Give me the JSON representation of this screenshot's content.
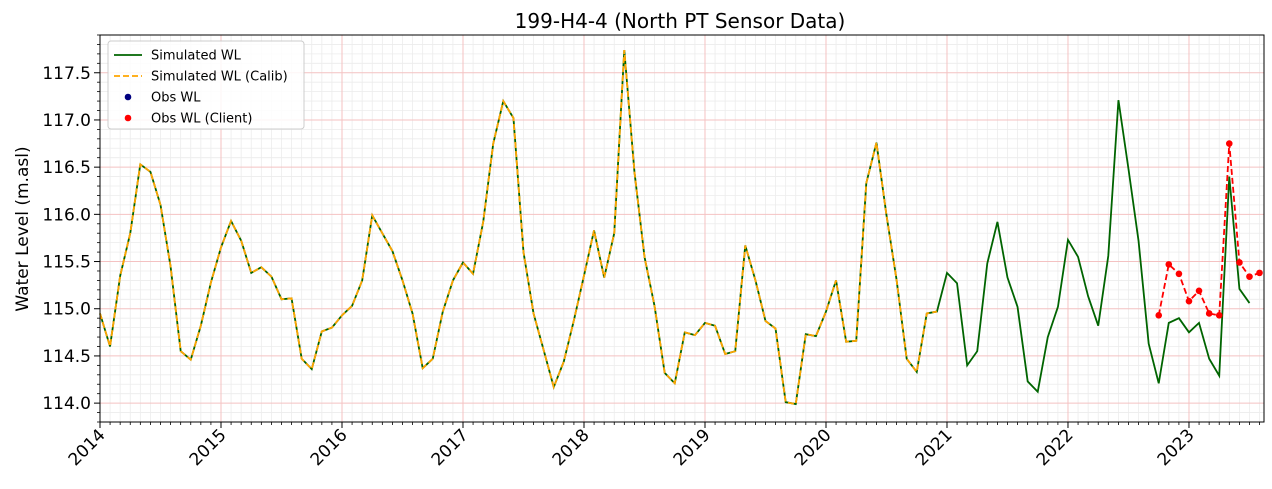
{
  "chart_data": {
    "type": "line",
    "title": "199-H4-4 (North PT Sensor Data)",
    "xlabel": "",
    "ylabel": "Water Level (m.asl)",
    "xlim": [
      2014.0,
      2023.62
    ],
    "ylim": [
      113.8,
      117.9
    ],
    "x_ticks": [
      2014,
      2015,
      2016,
      2017,
      2018,
      2019,
      2020,
      2021,
      2022,
      2023
    ],
    "x_tick_labels": [
      "2014",
      "2015",
      "2016",
      "2017",
      "2018",
      "2019",
      "2020",
      "2021",
      "2022",
      "2023"
    ],
    "y_ticks": [
      114.0,
      114.5,
      115.0,
      115.5,
      116.0,
      116.5,
      117.0,
      117.5
    ],
    "y_tick_labels": [
      "114.0",
      "114.5",
      "115.0",
      "115.5",
      "116.0",
      "116.5",
      "117.0",
      "117.5"
    ],
    "grid": true,
    "legend_position": "top-left",
    "colors": {
      "simulated": "#006400",
      "calib": "#FFA500",
      "obs": "#000080",
      "client": "#FF0000",
      "grid_major": "#f4c2c2",
      "grid_minor": "#ececec"
    },
    "legend": [
      {
        "label": "Simulated WL",
        "kind": "line",
        "color": "#006400"
      },
      {
        "label": "Simulated WL (Calib)",
        "kind": "dashed",
        "color": "#FFA500"
      },
      {
        "label": "Obs WL",
        "kind": "dot",
        "color": "#000080"
      },
      {
        "label": "Obs WL (Client)",
        "kind": "dot",
        "color": "#FF0000"
      }
    ],
    "series": [
      {
        "name": "Simulated WL",
        "style": "solid",
        "color": "#006400",
        "x": [
          2014.0,
          2014.083,
          2014.167,
          2014.25,
          2014.333,
          2014.417,
          2014.5,
          2014.583,
          2014.667,
          2014.75,
          2014.833,
          2014.917,
          2015.0,
          2015.083,
          2015.167,
          2015.25,
          2015.333,
          2015.417,
          2015.5,
          2015.583,
          2015.667,
          2015.75,
          2015.833,
          2015.917,
          2016.0,
          2016.083,
          2016.167,
          2016.25,
          2016.333,
          2016.417,
          2016.5,
          2016.583,
          2016.667,
          2016.75,
          2016.833,
          2016.917,
          2017.0,
          2017.083,
          2017.167,
          2017.25,
          2017.333,
          2017.417,
          2017.5,
          2017.583,
          2017.667,
          2017.75,
          2017.833,
          2017.917,
          2018.0,
          2018.083,
          2018.167,
          2018.25,
          2018.333,
          2018.417,
          2018.5,
          2018.583,
          2018.667,
          2018.75,
          2018.833,
          2018.917,
          2019.0,
          2019.083,
          2019.167,
          2019.25,
          2019.333,
          2019.417,
          2019.5,
          2019.583,
          2019.667,
          2019.75,
          2019.833,
          2019.917,
          2020.0,
          2020.083,
          2020.167,
          2020.25,
          2020.333,
          2020.417,
          2020.5,
          2020.583,
          2020.667,
          2020.75,
          2020.833,
          2020.917,
          2021.0,
          2021.083,
          2021.167,
          2021.25,
          2021.333,
          2021.417,
          2021.5,
          2021.583,
          2021.667,
          2021.75,
          2021.833,
          2021.917,
          2022.0,
          2022.083,
          2022.167,
          2022.25,
          2022.333,
          2022.417,
          2022.5,
          2022.583,
          2022.667,
          2022.75,
          2022.833,
          2022.917,
          2023.0,
          2023.083,
          2023.167,
          2023.25,
          2023.333,
          2023.417,
          2023.5
        ],
        "values": [
          114.95,
          114.6,
          115.35,
          115.8,
          116.53,
          116.45,
          116.1,
          115.45,
          114.55,
          114.46,
          114.82,
          115.28,
          115.65,
          115.93,
          115.72,
          115.38,
          115.44,
          115.34,
          115.1,
          115.11,
          114.47,
          114.36,
          114.76,
          114.8,
          114.93,
          115.03,
          115.3,
          115.99,
          115.8,
          115.61,
          115.3,
          114.95,
          114.37,
          114.47,
          114.97,
          115.3,
          115.49,
          115.37,
          115.92,
          116.75,
          117.2,
          117.02,
          115.6,
          114.95,
          114.56,
          114.17,
          114.44,
          114.88,
          115.35,
          115.83,
          115.33,
          115.8,
          117.74,
          116.45,
          115.55,
          115.03,
          114.32,
          114.21,
          114.75,
          114.72,
          114.85,
          114.82,
          114.52,
          114.55,
          115.67,
          115.3,
          114.87,
          114.79,
          114.01,
          113.99,
          114.73,
          114.71,
          114.97,
          115.3,
          114.65,
          114.66,
          116.33,
          116.76,
          115.99,
          115.31,
          114.47,
          114.33,
          114.95,
          114.97,
          115.38,
          115.27,
          114.4,
          114.55,
          115.48,
          115.92,
          115.33,
          115.02,
          114.23,
          114.12,
          114.7,
          115.02,
          115.73,
          115.55,
          115.13,
          114.82,
          115.56,
          117.21,
          116.48,
          115.72,
          114.63,
          114.21,
          114.85,
          114.9,
          114.75,
          114.85,
          114.47,
          114.29,
          116.4,
          115.21,
          115.06
        ]
      },
      {
        "name": "Simulated WL (Calib)",
        "style": "dashed",
        "color": "#FFA500",
        "x": [
          2014.0,
          2014.083,
          2014.167,
          2014.25,
          2014.333,
          2014.417,
          2014.5,
          2014.583,
          2014.667,
          2014.75,
          2014.833,
          2014.917,
          2015.0,
          2015.083,
          2015.167,
          2015.25,
          2015.333,
          2015.417,
          2015.5,
          2015.583,
          2015.667,
          2015.75,
          2015.833,
          2015.917,
          2016.0,
          2016.083,
          2016.167,
          2016.25,
          2016.333,
          2016.417,
          2016.5,
          2016.583,
          2016.667,
          2016.75,
          2016.833,
          2016.917,
          2017.0,
          2017.083,
          2017.167,
          2017.25,
          2017.333,
          2017.417,
          2017.5,
          2017.583,
          2017.667,
          2017.75,
          2017.833,
          2017.917,
          2018.0,
          2018.083,
          2018.167,
          2018.25,
          2018.333,
          2018.417,
          2018.5,
          2018.583,
          2018.667,
          2018.75,
          2018.833,
          2018.917,
          2019.0,
          2019.083,
          2019.167,
          2019.25,
          2019.333,
          2019.417,
          2019.5,
          2019.583,
          2019.667,
          2019.75,
          2019.833,
          2019.917,
          2020.0,
          2020.083,
          2020.167,
          2020.25,
          2020.333,
          2020.417,
          2020.5,
          2020.583,
          2020.667,
          2020.75,
          2020.833,
          2020.917
        ],
        "values": [
          114.95,
          114.6,
          115.35,
          115.8,
          116.53,
          116.45,
          116.1,
          115.45,
          114.55,
          114.46,
          114.82,
          115.28,
          115.65,
          115.93,
          115.72,
          115.38,
          115.44,
          115.34,
          115.1,
          115.11,
          114.47,
          114.36,
          114.76,
          114.8,
          114.93,
          115.03,
          115.3,
          115.99,
          115.8,
          115.61,
          115.3,
          114.95,
          114.37,
          114.47,
          114.97,
          115.3,
          115.49,
          115.37,
          115.92,
          116.75,
          117.2,
          117.02,
          115.6,
          114.95,
          114.56,
          114.17,
          114.44,
          114.88,
          115.35,
          115.83,
          115.33,
          115.8,
          117.74,
          116.45,
          115.55,
          115.03,
          114.32,
          114.21,
          114.75,
          114.72,
          114.85,
          114.82,
          114.52,
          114.55,
          115.67,
          115.3,
          114.87,
          114.79,
          114.01,
          113.99,
          114.73,
          114.71,
          114.97,
          115.3,
          114.65,
          114.66,
          116.33,
          116.76,
          115.99,
          115.31,
          114.47,
          114.33,
          114.95,
          114.97
        ]
      },
      {
        "name": "Obs WL",
        "style": "dot",
        "color": "#000080",
        "x": [],
        "values": []
      },
      {
        "name": "Obs WL (Client)",
        "style": "dashed-dot",
        "color": "#FF0000",
        "x": [
          2022.75,
          2022.833,
          2022.917,
          2023.0,
          2023.083,
          2023.167,
          2023.25,
          2023.333,
          2023.417,
          2023.5,
          2023.583
        ],
        "values": [
          114.93,
          115.47,
          115.37,
          115.08,
          115.19,
          114.95,
          114.93,
          116.75,
          115.49,
          115.34,
          115.38
        ]
      }
    ]
  }
}
